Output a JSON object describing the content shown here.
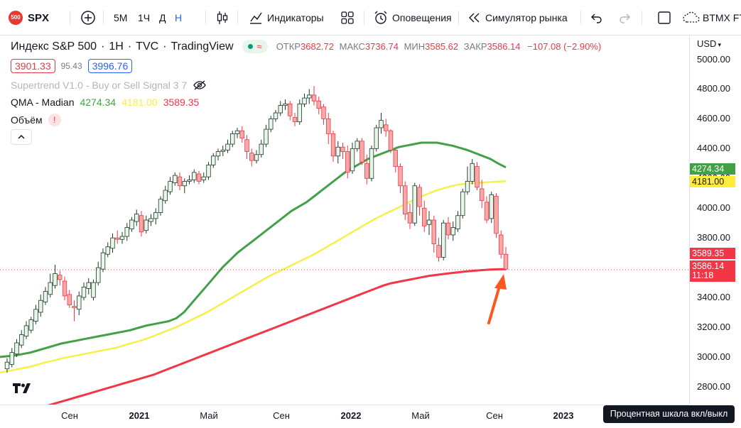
{
  "toolbar": {
    "logo_badge": "500",
    "symbol": "SPX",
    "intervals": [
      "5М",
      "1Ч",
      "Д",
      "Н"
    ],
    "active_interval": "Н",
    "indicators_label": "Индикаторы",
    "alerts_label": "Оповещения",
    "replay_label": "Симулятор рынка",
    "broker_label": "BTMX FT",
    "active_color": "#2962ff"
  },
  "legend": {
    "title": "Индекс S&P 500",
    "interval": "1H",
    "source": "TVC",
    "provider": "TradingView",
    "open_label": "ОТКР",
    "open_value": "3682.72",
    "high_label": "МАКС",
    "high_value": "3736.74",
    "low_label": "МИН",
    "low_value": "3585.62",
    "close_label": "ЗАКР",
    "close_value": "3586.14",
    "change": "−107.08 (−2.90%)",
    "bid": "3901.33",
    "spread": "95.43",
    "ask": "3996.76",
    "down_color": "#f23645",
    "up_color": "#2962ff"
  },
  "indicators": [
    {
      "name": "Supertrend V1.0 - Buy or Sell Signal 3 7"
    },
    {
      "name": "QMA - Madian",
      "values": [
        "4274.34",
        "4181.00",
        "3589.35"
      ],
      "colors": [
        "#43a047",
        "#f6f04a",
        "#f23645"
      ]
    },
    {
      "name": "Объём",
      "badge": "!"
    }
  ],
  "price_axis": {
    "currency": "USD",
    "ticks": [
      "5000.00",
      "4800.00",
      "4600.00",
      "4400.00",
      "4200.00",
      "4000.00",
      "3800.00",
      "3600.00",
      "3400.00",
      "3200.00",
      "3000.00",
      "2800.00"
    ],
    "labels": [
      {
        "value": "4274.34",
        "color": "#43a047",
        "text_color": "#ffffff"
      },
      {
        "value": "4181.00",
        "color": "#ffeb3b",
        "text_color": "#131722"
      },
      {
        "value": "3589.35",
        "color": "#f23645",
        "text_color": "#ffffff"
      },
      {
        "value": "3586.14",
        "countdown": "11:18",
        "color": "#f23645",
        "text_color": "#ffffff"
      }
    ]
  },
  "time_axis": {
    "labels": [
      "Сен",
      "2021",
      "Май",
      "Сен",
      "2022",
      "Май",
      "Сен",
      "2023"
    ],
    "tooltip": "Процентная шкала вкл/выкл"
  },
  "chart_data": {
    "type": "candlestick",
    "y_range": [
      2680,
      5160
    ],
    "last_price": 3586.14,
    "candles": [
      [
        2920,
        2965,
        2895,
        2990
      ],
      [
        2950,
        3030,
        2930,
        3060
      ],
      [
        3020,
        3095,
        3000,
        3120
      ],
      [
        3080,
        3150,
        3060,
        3180
      ],
      [
        3140,
        3210,
        3120,
        3240
      ],
      [
        3180,
        3250,
        3160,
        3270
      ],
      [
        3240,
        3320,
        3220,
        3350
      ],
      [
        3300,
        3380,
        3270,
        3420
      ],
      [
        3370,
        3440,
        3350,
        3470
      ],
      [
        3420,
        3500,
        3400,
        3560
      ],
      [
        3480,
        3560,
        3460,
        3620
      ],
      [
        3550,
        3520,
        3480,
        3580
      ],
      [
        3510,
        3410,
        3380,
        3540
      ],
      [
        3420,
        3350,
        3330,
        3450
      ],
      [
        3340,
        3330,
        3240,
        3380
      ],
      [
        3320,
        3410,
        3280,
        3440
      ],
      [
        3400,
        3470,
        3380,
        3500
      ],
      [
        3460,
        3500,
        3420,
        3530
      ],
      [
        3400,
        3500,
        3380,
        3520
      ],
      [
        3500,
        3600,
        3480,
        3640
      ],
      [
        3590,
        3700,
        3570,
        3730
      ],
      [
        3690,
        3740,
        3670,
        3770
      ],
      [
        3730,
        3800,
        3700,
        3830
      ],
      [
        3800,
        3790,
        3760,
        3850
      ],
      [
        3790,
        3810,
        3760,
        3840
      ],
      [
        3810,
        3870,
        3780,
        3900
      ],
      [
        3860,
        3920,
        3840,
        3940
      ],
      [
        3910,
        3960,
        3880,
        3990
      ],
      [
        3950,
        3840,
        3810,
        3980
      ],
      [
        3850,
        3920,
        3830,
        3950
      ],
      [
        3910,
        3930,
        3880,
        3960
      ],
      [
        3930,
        3970,
        3890,
        4000
      ],
      [
        3970,
        4060,
        3950,
        4080
      ],
      [
        4050,
        4120,
        4030,
        4150
      ],
      [
        4110,
        4180,
        4090,
        4210
      ],
      [
        4170,
        4220,
        4150,
        4240
      ],
      [
        4210,
        4150,
        4120,
        4240
      ],
      [
        4150,
        4180,
        4100,
        4200
      ],
      [
        4180,
        4190,
        4160,
        4220
      ],
      [
        4190,
        4240,
        4170,
        4260
      ],
      [
        4230,
        4180,
        4160,
        4250
      ],
      [
        4190,
        4210,
        4170,
        4240
      ],
      [
        4210,
        4290,
        4190,
        4310
      ],
      [
        4290,
        4350,
        4270,
        4370
      ],
      [
        4350,
        4380,
        4320,
        4400
      ],
      [
        4380,
        4390,
        4350,
        4420
      ],
      [
        4390,
        4430,
        4370,
        4460
      ],
      [
        4430,
        4500,
        4410,
        4520
      ],
      [
        4500,
        4520,
        4470,
        4540
      ],
      [
        4520,
        4470,
        4440,
        4550
      ],
      [
        4460,
        4380,
        4330,
        4490
      ],
      [
        4370,
        4320,
        4280,
        4400
      ],
      [
        4320,
        4360,
        4300,
        4390
      ],
      [
        4360,
        4430,
        4340,
        4460
      ],
      [
        4430,
        4530,
        4410,
        4560
      ],
      [
        4530,
        4600,
        4510,
        4620
      ],
      [
        4600,
        4640,
        4580,
        4660
      ],
      [
        4640,
        4690,
        4620,
        4720
      ],
      [
        4690,
        4700,
        4660,
        4730
      ],
      [
        4700,
        4620,
        4590,
        4720
      ],
      [
        4610,
        4580,
        4550,
        4640
      ],
      [
        4580,
        4700,
        4560,
        4730
      ],
      [
        4700,
        4740,
        4680,
        4770
      ],
      [
        4740,
        4760,
        4700,
        4800
      ],
      [
        4760,
        4720,
        4690,
        4820
      ],
      [
        4720,
        4670,
        4630,
        4750
      ],
      [
        4680,
        4600,
        4560,
        4700
      ],
      [
        4600,
        4500,
        4430,
        4640
      ],
      [
        4500,
        4350,
        4310,
        4520
      ],
      [
        4350,
        4410,
        4300,
        4450
      ],
      [
        4410,
        4380,
        4330,
        4440
      ],
      [
        4380,
        4240,
        4200,
        4420
      ],
      [
        4250,
        4400,
        4230,
        4440
      ],
      [
        4400,
        4450,
        4380,
        4470
      ],
      [
        4450,
        4310,
        4290,
        4470
      ],
      [
        4300,
        4200,
        4160,
        4360
      ],
      [
        4200,
        4400,
        4180,
        4420
      ],
      [
        4400,
        4540,
        4380,
        4560
      ],
      [
        4540,
        4590,
        4500,
        4640
      ],
      [
        4560,
        4520,
        4480,
        4600
      ],
      [
        4520,
        4390,
        4370,
        4530
      ],
      [
        4390,
        4280,
        4240,
        4400
      ],
      [
        4280,
        4150,
        4100,
        4300
      ],
      [
        4150,
        3960,
        3920,
        4180
      ],
      [
        3970,
        3900,
        3860,
        4030
      ],
      [
        3900,
        4150,
        3880,
        4170
      ],
      [
        4140,
        4010,
        3950,
        4160
      ],
      [
        4000,
        3880,
        3840,
        4050
      ],
      [
        3890,
        3920,
        3820,
        3980
      ],
      [
        3920,
        3760,
        3700,
        3950
      ],
      [
        3750,
        3670,
        3640,
        3800
      ],
      [
        3670,
        3900,
        3650,
        3920
      ],
      [
        3900,
        3820,
        3790,
        3940
      ],
      [
        3820,
        3870,
        3780,
        3910
      ],
      [
        3860,
        3950,
        3840,
        3980
      ],
      [
        3950,
        4110,
        3930,
        4130
      ],
      [
        4110,
        4180,
        4090,
        4280
      ],
      [
        4180,
        4300,
        4160,
        4330
      ],
      [
        4280,
        4140,
        4120,
        4310
      ],
      [
        4130,
        4050,
        4000,
        4190
      ],
      [
        4040,
        3920,
        3900,
        4080
      ],
      [
        3930,
        4090,
        3900,
        4110
      ],
      [
        4080,
        3830,
        3800,
        4100
      ],
      [
        3820,
        3690,
        3660,
        3850
      ],
      [
        3690,
        3590,
        3585,
        3740
      ]
    ],
    "series": [
      {
        "name": "QMA - Madian 4274.34",
        "color": "#43a047",
        "values": [
          3000,
          3005,
          3010,
          3020,
          3030,
          3045,
          3060,
          3075,
          3090,
          3100,
          3110,
          3120,
          3130,
          3140,
          3150,
          3160,
          3170,
          3180,
          3195,
          3210,
          3220,
          3230,
          3240,
          3260,
          3300,
          3360,
          3420,
          3480,
          3540,
          3600,
          3650,
          3700,
          3740,
          3780,
          3820,
          3860,
          3900,
          3940,
          3980,
          4010,
          4040,
          4080,
          4120,
          4160,
          4200,
          4240,
          4270,
          4300,
          4330,
          4350,
          4370,
          4390,
          4410,
          4420,
          4430,
          4440,
          4440,
          4440,
          4430,
          4420,
          4405,
          4390,
          4370,
          4350,
          4330,
          4300,
          4274
        ]
      },
      {
        "name": "QMA - Madian 4181.00",
        "color": "#f6f04a",
        "values": [
          2895,
          2905,
          2915,
          2925,
          2935,
          2950,
          2965,
          2975,
          2990,
          3000,
          3010,
          3020,
          3030,
          3040,
          3050,
          3060,
          3075,
          3090,
          3105,
          3120,
          3140,
          3160,
          3180,
          3200,
          3225,
          3250,
          3275,
          3300,
          3330,
          3360,
          3390,
          3420,
          3450,
          3480,
          3510,
          3540,
          3565,
          3590,
          3615,
          3640,
          3665,
          3690,
          3720,
          3750,
          3780,
          3810,
          3840,
          3870,
          3900,
          3930,
          3955,
          3980,
          4005,
          4030,
          4055,
          4080,
          4100,
          4120,
          4135,
          4150,
          4160,
          4165,
          4170,
          4172,
          4175,
          4178,
          4181
        ]
      },
      {
        "name": "QMA - Madian 3589.35",
        "color": "#f23645",
        "values": [
          2580,
          2595,
          2610,
          2625,
          2640,
          2655,
          2670,
          2685,
          2700,
          2715,
          2730,
          2745,
          2760,
          2775,
          2790,
          2805,
          2820,
          2835,
          2850,
          2865,
          2880,
          2900,
          2920,
          2940,
          2960,
          2980,
          3000,
          3020,
          3040,
          3060,
          3080,
          3100,
          3120,
          3140,
          3160,
          3180,
          3200,
          3220,
          3240,
          3260,
          3280,
          3300,
          3320,
          3340,
          3360,
          3380,
          3400,
          3420,
          3440,
          3460,
          3480,
          3495,
          3505,
          3515,
          3525,
          3535,
          3545,
          3552,
          3558,
          3564,
          3570,
          3575,
          3580,
          3584,
          3587,
          3589,
          3589.35
        ]
      }
    ]
  }
}
